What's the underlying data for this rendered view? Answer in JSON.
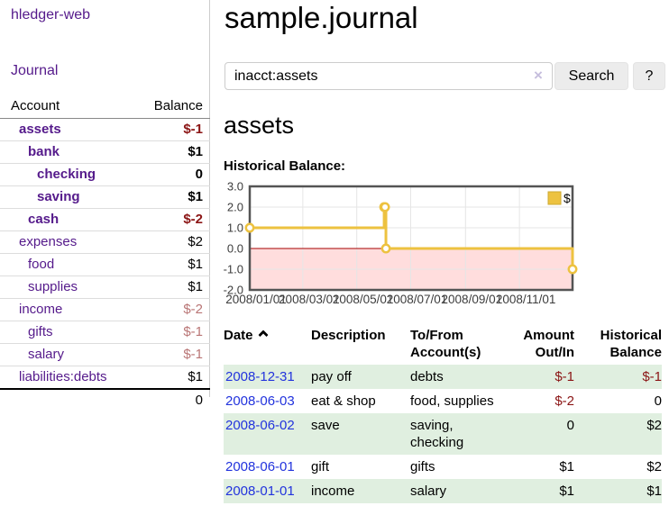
{
  "sidebar": {
    "brand": "hledger-web",
    "journal_link": "Journal",
    "accounts": {
      "col_account": "Account",
      "col_balance": "Balance",
      "rows": [
        {
          "name": "assets",
          "balance": "$-1",
          "depth": 1,
          "bold": true,
          "neg": "strong",
          "blue": false
        },
        {
          "name": "bank",
          "balance": "$1",
          "depth": 2,
          "bold": true,
          "neg": "",
          "blue": false
        },
        {
          "name": "checking",
          "balance": "0",
          "depth": 3,
          "bold": true,
          "neg": "",
          "blue": false
        },
        {
          "name": "saving",
          "balance": "$1",
          "depth": 3,
          "bold": true,
          "neg": "",
          "blue": false
        },
        {
          "name": "cash",
          "balance": "$-2",
          "depth": 2,
          "bold": true,
          "neg": "strong",
          "blue": false
        },
        {
          "name": "expenses",
          "balance": "$2",
          "depth": 1,
          "bold": false,
          "neg": "",
          "blue": false
        },
        {
          "name": "food",
          "balance": "$1",
          "depth": 2,
          "bold": false,
          "neg": "",
          "blue": false
        },
        {
          "name": "supplies",
          "balance": "$1",
          "depth": 2,
          "bold": false,
          "neg": "",
          "blue": false
        },
        {
          "name": "income",
          "balance": "$-2",
          "depth": 1,
          "bold": false,
          "neg": "soft",
          "blue": false
        },
        {
          "name": "gifts",
          "balance": "$-1",
          "depth": 2,
          "bold": false,
          "neg": "soft",
          "blue": false
        },
        {
          "name": "salary",
          "balance": "$-1",
          "depth": 2,
          "bold": false,
          "neg": "soft",
          "blue": true
        },
        {
          "name": "liabilities:debts",
          "balance": "$1",
          "depth": 1,
          "bold": false,
          "neg": "",
          "blue": false
        }
      ],
      "total": "0"
    }
  },
  "main": {
    "title": "sample.journal",
    "search": {
      "value": "inacct:assets",
      "clear_icon": "×",
      "search_label": "Search",
      "help_label": "?"
    },
    "account_heading": "assets",
    "chart_label": "Historical Balance:"
  },
  "chart_data": {
    "type": "line",
    "step": true,
    "title": "Historical Balance:",
    "legend": [
      {
        "label": "$",
        "color": "#edc240"
      }
    ],
    "legend_position": "top-right",
    "x_range_days": [
      0,
      365
    ],
    "x_ticks": [
      {
        "day": 0,
        "label": "2008/01/01"
      },
      {
        "day": 60,
        "label": "2008/03/01"
      },
      {
        "day": 121,
        "label": "2008/05/01"
      },
      {
        "day": 182,
        "label": "2008/07/01"
      },
      {
        "day": 244,
        "label": "2008/09/01"
      },
      {
        "day": 305,
        "label": "2008/11/01"
      }
    ],
    "y_ticks": [
      "3.0",
      "2.0",
      "1.0",
      "0.0",
      "-1.0",
      "-2.0"
    ],
    "y_range": [
      -2,
      3
    ],
    "series": [
      {
        "name": "$",
        "color": "#edc240",
        "points": [
          {
            "date": "2008/01/01",
            "day": 0,
            "value": 1
          },
          {
            "date": "2008/06/01",
            "day": 152,
            "value": 2
          },
          {
            "date": "2008/06/02",
            "day": 153,
            "value": 2
          },
          {
            "date": "2008/06/03",
            "day": 154,
            "value": 0
          },
          {
            "date": "2008/12/31",
            "day": 365,
            "value": -1
          }
        ]
      }
    ],
    "negative_region_color": "#ffdddd",
    "zero_line_color": "#a40000",
    "grid_color": "#e6e6e6",
    "border_color": "#545454"
  },
  "register": {
    "sort": {
      "column": "Date",
      "direction": "ascending"
    },
    "headers": {
      "date": "Date",
      "description": "Description",
      "tofrom": "To/From Account(s)",
      "amount": "Amount Out/In",
      "balance": "Historical Balance"
    },
    "rows": [
      {
        "date": "2008-12-31",
        "description": "pay off",
        "accounts": "debts",
        "amount": "$-1",
        "balance": "$-1",
        "amount_neg": true,
        "balance_neg": true,
        "shaded": true
      },
      {
        "date": "2008-06-03",
        "description": "eat & shop",
        "accounts": "food, supplies",
        "amount": "$-2",
        "balance": "0",
        "amount_neg": true,
        "balance_neg": false,
        "shaded": false
      },
      {
        "date": "2008-06-02",
        "description": "save",
        "accounts": "saving, checking",
        "amount": "0",
        "balance": "$2",
        "amount_neg": false,
        "balance_neg": false,
        "shaded": true
      },
      {
        "date": "2008-06-01",
        "description": "gift",
        "accounts": "gifts",
        "amount": "$1",
        "balance": "$2",
        "amount_neg": false,
        "balance_neg": false,
        "shaded": false
      },
      {
        "date": "2008-01-01",
        "description": "income",
        "accounts": "salary",
        "amount": "$1",
        "balance": "$1",
        "amount_neg": false,
        "balance_neg": false,
        "shaded": true
      }
    ]
  }
}
